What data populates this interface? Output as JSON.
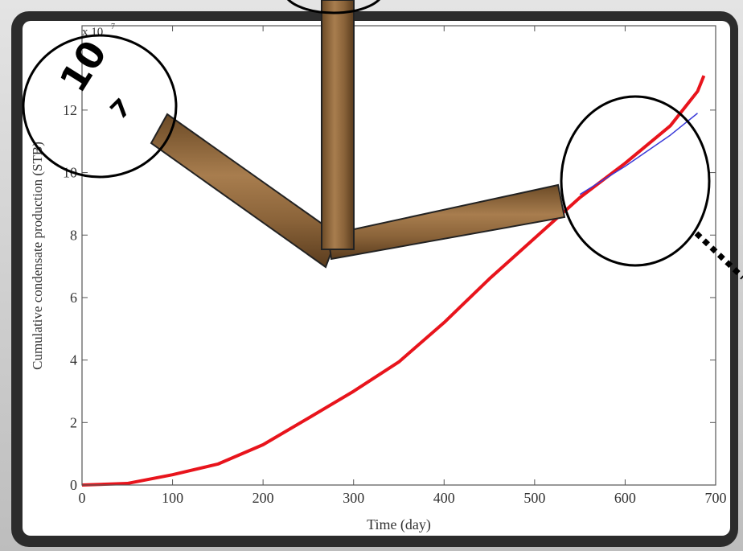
{
  "chart_data": {
    "type": "line",
    "xlabel": "Time (day)",
    "ylabel": "Cumulative condensate production (STB)",
    "y_multiplier": {
      "base": "x 10",
      "exponent": "7"
    },
    "annotations": [
      "10",
      "7"
    ],
    "x": [
      0,
      50,
      100,
      150,
      200,
      250,
      300,
      350,
      400,
      450,
      500,
      550,
      600,
      650,
      680,
      687
    ],
    "series": [
      {
        "color": "#e8141c",
        "values": [
          0,
          0.05,
          0.33,
          0.67,
          1.29,
          2.14,
          3.0,
          3.94,
          5.2,
          6.6,
          7.9,
          9.2,
          10.3,
          11.5,
          12.6,
          13.1
        ]
      },
      {
        "color": "#3a3ad8",
        "values": [
          null,
          null,
          null,
          null,
          null,
          null,
          null,
          null,
          null,
          null,
          null,
          9.3,
          10.2,
          11.2,
          11.9,
          null
        ]
      }
    ],
    "xlim": [
      0,
      700
    ],
    "xticks": [
      0,
      100,
      200,
      300,
      400,
      500,
      600,
      700
    ],
    "ylim": [
      0,
      14.7
    ],
    "yticks": [
      0,
      2,
      4,
      6,
      8,
      10,
      12
    ]
  }
}
